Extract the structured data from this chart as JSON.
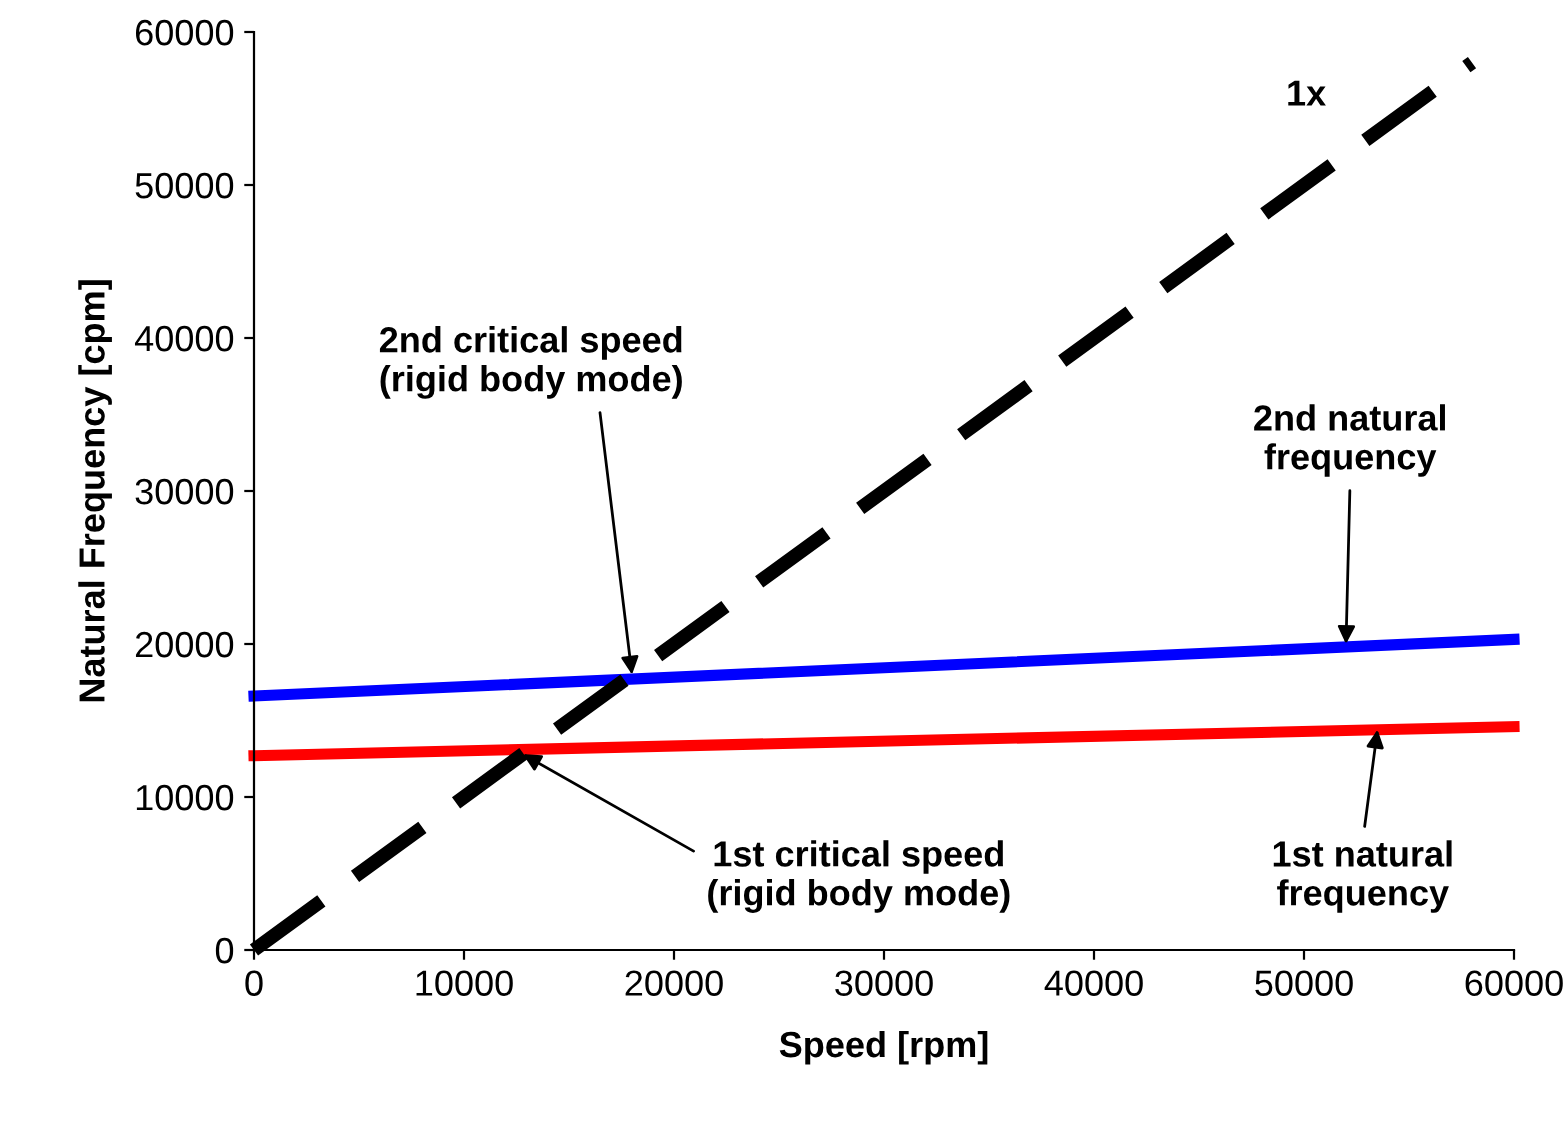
{
  "chart_data": {
    "type": "line",
    "xlabel": "Speed [rpm]",
    "ylabel": "Natural Frequency [cpm]",
    "xlim": [
      0,
      60000
    ],
    "ylim": [
      0,
      60000
    ],
    "xticks": [
      0,
      10000,
      20000,
      30000,
      40000,
      50000,
      60000
    ],
    "yticks": [
      0,
      10000,
      20000,
      30000,
      40000,
      50000,
      60000
    ],
    "grid": false,
    "legend": false,
    "marker": "none",
    "series": [
      {
        "color": "#0000ff",
        "line_style": "solid",
        "x": [
          0,
          60000
        ],
        "values": [
          16600,
          20300
        ]
      },
      {
        "color": "#ff0000",
        "line_style": "solid",
        "x": [
          0,
          60000
        ],
        "values": [
          12700,
          14600
        ]
      },
      {
        "color": "#000000",
        "line_style": "dashed",
        "x": [
          0,
          58000
        ],
        "values": [
          0,
          58000
        ]
      }
    ],
    "annotations": [
      "1x",
      {
        "text": "2nd critical speed\n(rigid body mode)",
        "x": 18000,
        "y": 18000
      },
      {
        "text": "1st critical speed\n(rigid body mode)",
        "x": 12800,
        "y": 12800
      },
      {
        "text": "2nd natural\nfrequency",
        "x": 52000,
        "y": 20000
      },
      {
        "text": "1st natural\nfrequency",
        "x": 53500,
        "y": 14400
      }
    ]
  }
}
